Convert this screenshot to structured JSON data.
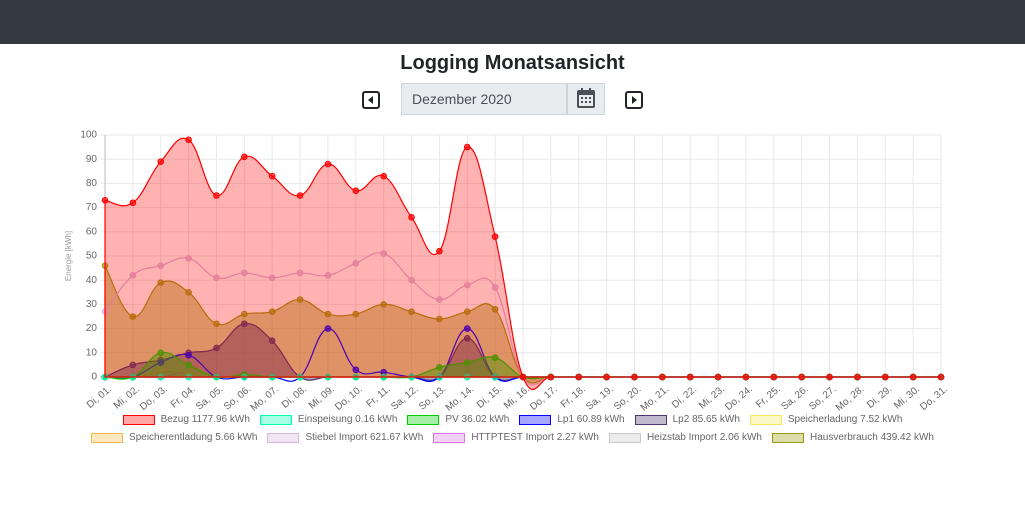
{
  "page": {
    "title": "Logging Monatsansicht",
    "date": "Dezember 2020"
  },
  "chart_data": {
    "type": "line",
    "ylabel": "Energie [kWh]",
    "categories": [
      "Di, 01.",
      "Mi, 02.",
      "Do, 03.",
      "Fr, 04.",
      "Sa, 05.",
      "So, 06.",
      "Mo, 07.",
      "Di, 08.",
      "Mi, 09.",
      "Do, 10.",
      "Fr, 11.",
      "Sa, 12.",
      "So, 13.",
      "Mo, 14.",
      "Di, 15.",
      "Mi, 16.",
      "Do, 17.",
      "Fr, 18.",
      "Sa, 19.",
      "So, 20.",
      "Mo, 21.",
      "Di, 22.",
      "Mi, 23.",
      "Do, 24.",
      "Fr, 25.",
      "Sa, 26.",
      "So, 27.",
      "Mo, 28.",
      "Di, 29.",
      "Mi, 30.",
      "Do, 31."
    ],
    "ylim": [
      0,
      100
    ],
    "yticks": [
      0,
      10,
      20,
      30,
      40,
      50,
      60,
      70,
      80,
      90,
      100
    ],
    "grid": true,
    "series": [
      {
        "name": "Bezug 1177.96 kWh",
        "color": "#ff0000",
        "fill": true,
        "values": [
          73,
          72,
          89,
          98,
          75,
          91,
          83,
          75,
          88,
          77,
          83,
          66,
          52,
          95,
          58,
          0,
          0,
          0,
          0,
          0,
          0,
          0,
          0,
          0,
          0,
          0,
          0,
          0,
          0,
          0,
          0
        ]
      },
      {
        "name": "Einspeisung 0.16 kWh",
        "color": "#00ffb0",
        "fill": true,
        "values": [
          0,
          0,
          0,
          0,
          0,
          0,
          0,
          0,
          0,
          0,
          0,
          0,
          0,
          0,
          0,
          0,
          0,
          0,
          0,
          0,
          0,
          0,
          0,
          0,
          0,
          0,
          0,
          0,
          0,
          0,
          0
        ]
      },
      {
        "name": "PV 36.02 kWh",
        "color": "#00d000",
        "fill": true,
        "values": [
          0,
          0,
          10,
          5,
          0,
          1,
          0,
          0,
          0,
          0,
          0,
          0,
          4,
          6,
          8,
          0,
          0,
          0,
          0,
          0,
          0,
          0,
          0,
          0,
          0,
          0,
          0,
          0,
          0,
          0,
          0
        ]
      },
      {
        "name": "Lp1 60.89 kWh",
        "color": "#0000ff",
        "fill": false,
        "values": [
          0,
          0,
          6,
          9,
          0,
          0,
          0,
          0,
          20,
          3,
          2,
          0,
          0,
          20,
          0,
          0,
          0,
          0,
          0,
          0,
          0,
          0,
          0,
          0,
          0,
          0,
          0,
          0,
          0,
          0,
          0
        ]
      },
      {
        "name": "Lp2 85.65 kWh",
        "color": "#4c3870",
        "fill": true,
        "values": [
          0,
          5,
          7,
          10,
          12,
          22,
          15,
          0,
          0,
          0,
          0,
          0,
          0,
          16,
          0,
          0,
          0,
          0,
          0,
          0,
          0,
          0,
          0,
          0,
          0,
          0,
          0,
          0,
          0,
          0,
          0
        ]
      },
      {
        "name": "Speicherladung 7.52 kWh",
        "color": "#f5e85c",
        "fill": false,
        "values": [
          0,
          0,
          3,
          2,
          0,
          0,
          0,
          0,
          0,
          0,
          0,
          0,
          0,
          0,
          0,
          0,
          0,
          0,
          0,
          0,
          0,
          0,
          0,
          0,
          0,
          0,
          0,
          0,
          0,
          0,
          0
        ]
      },
      {
        "name": "Speicherentladung 5.66 kWh",
        "color": "#f5b94c",
        "fill": false,
        "values": [
          0,
          0,
          2,
          2,
          0,
          0,
          0,
          0,
          0,
          0,
          0,
          0,
          0,
          0,
          0,
          0,
          0,
          0,
          0,
          0,
          0,
          0,
          0,
          0,
          0,
          0,
          0,
          0,
          0,
          0,
          0
        ]
      },
      {
        "name": "Stiebel Import 621.67 kWh",
        "color": "#d8b5e0",
        "fill": false,
        "values": [
          27,
          42,
          46,
          49,
          41,
          43,
          41,
          43,
          42,
          47,
          51,
          40,
          32,
          38,
          37,
          0,
          0,
          0,
          0,
          0,
          0,
          0,
          0,
          0,
          0,
          0,
          0,
          0,
          0,
          0,
          0
        ]
      },
      {
        "name": "HTTPTEST Import 2.27 kWh",
        "color": "#d57be0",
        "fill": false,
        "values": [
          0,
          0,
          0,
          2,
          0,
          0,
          0,
          0,
          0,
          0,
          0,
          0,
          0,
          0,
          0,
          0,
          0,
          0,
          0,
          0,
          0,
          0,
          0,
          0,
          0,
          0,
          0,
          0,
          0,
          0,
          0
        ]
      },
      {
        "name": "Heizstab Import 2.06 kWh",
        "color": "#c8c8c8",
        "fill": false,
        "values": [
          0,
          0,
          0,
          0,
          0,
          0,
          0,
          0,
          0,
          0,
          0,
          0,
          0,
          0,
          0,
          0,
          0,
          0,
          0,
          0,
          0,
          0,
          0,
          0,
          0,
          0,
          0,
          0,
          0,
          0,
          0
        ]
      },
      {
        "name": "Hausverbrauch 439.42 kWh",
        "color": "#9a9a10",
        "fill": true,
        "values": [
          46,
          25,
          39,
          35,
          22,
          26,
          27,
          32,
          26,
          26,
          30,
          27,
          24,
          27,
          28,
          0,
          0,
          0,
          0,
          0,
          0,
          0,
          0,
          0,
          0,
          0,
          0,
          0,
          0,
          0,
          0
        ]
      }
    ]
  }
}
